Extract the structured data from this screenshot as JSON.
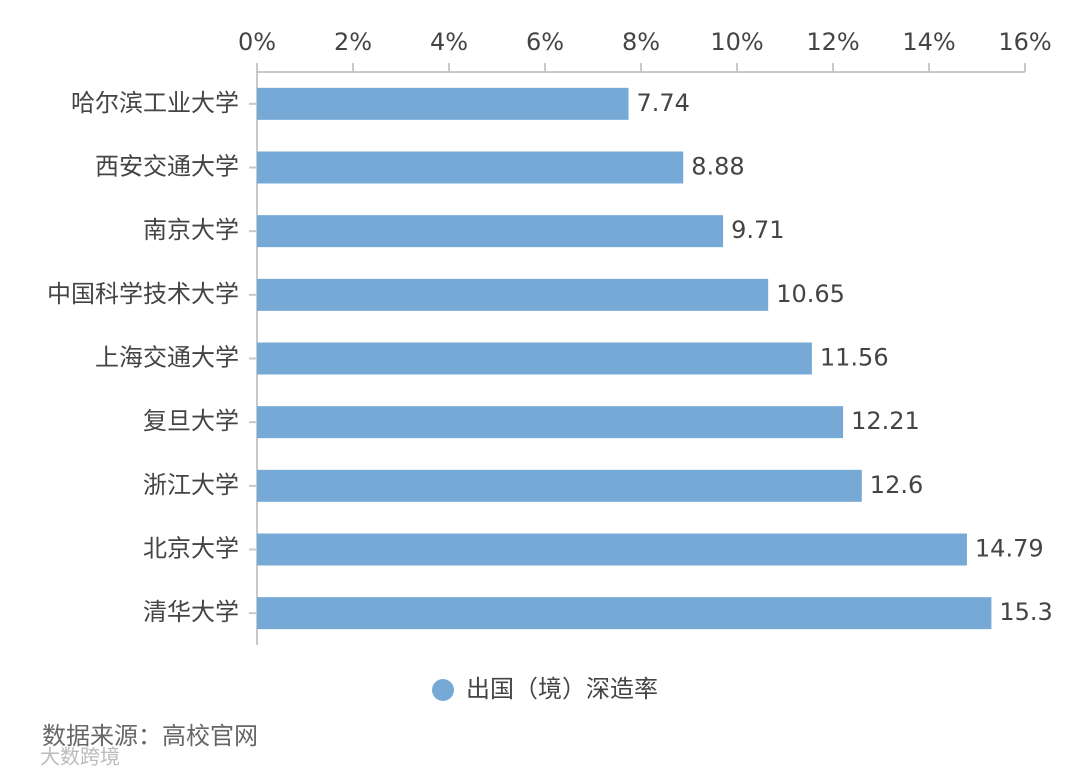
{
  "chart_data": {
    "type": "bar",
    "orientation": "horizontal",
    "categories": [
      "哈尔滨工业大学",
      "西安交通大学",
      "南京大学",
      "中国科学技术大学",
      "上海交通大学",
      "复旦大学",
      "浙江大学",
      "北京大学",
      "清华大学"
    ],
    "series": [
      {
        "name": "出国（境）深造率",
        "color": "#76a9d6",
        "values": [
          7.74,
          8.88,
          9.71,
          10.65,
          11.56,
          12.21,
          12.6,
          14.79,
          15.3
        ]
      }
    ],
    "xlim": [
      0,
      16
    ],
    "xticks": [
      {
        "value": 0,
        "label": "0%"
      },
      {
        "value": 2,
        "label": "2%"
      },
      {
        "value": 4,
        "label": "4%"
      },
      {
        "value": 6,
        "label": "6%"
      },
      {
        "value": 8,
        "label": "8%"
      },
      {
        "value": 10,
        "label": "10%"
      },
      {
        "value": 12,
        "label": "12%"
      },
      {
        "value": 14,
        "label": "14%"
      },
      {
        "value": 16,
        "label": "16%"
      }
    ],
    "legend": "bottom",
    "source": "数据来源：高校官网",
    "watermark": "大数跨境"
  }
}
